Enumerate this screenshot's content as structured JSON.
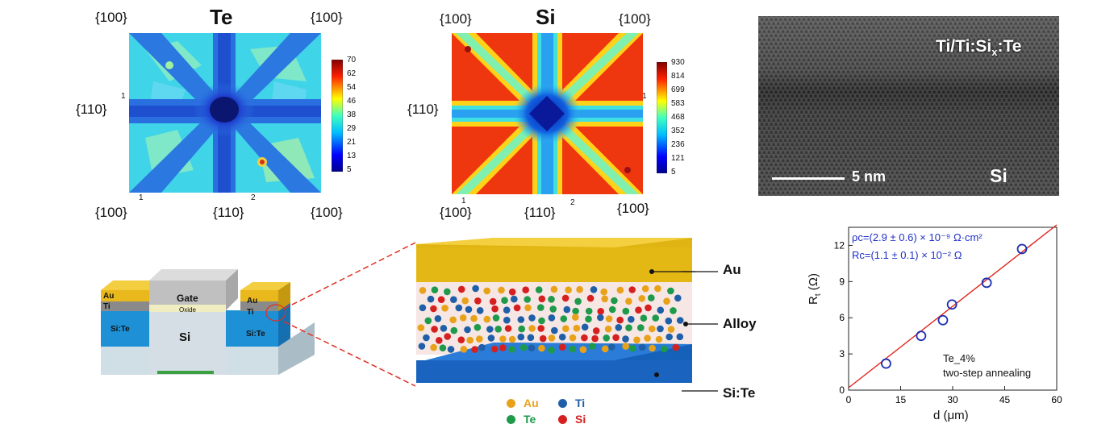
{
  "te_map": {
    "title": "Te",
    "top_left": "{100}",
    "top_right": "{100}",
    "left_mid": "{110}",
    "bottom_left": "{100}",
    "bottom_mid": "{110}",
    "bottom_right": "{100}",
    "marker_1": "1",
    "marker_1b": "1",
    "marker_2": "2",
    "colorbar": [
      "70",
      "62",
      "54",
      "46",
      "38",
      "29",
      "21",
      "13",
      "5"
    ]
  },
  "si_map": {
    "title": "Si",
    "top_left": "{100}",
    "top_right": "{100}",
    "left_mid": "{110}",
    "bottom_left": "{100}",
    "bottom_mid": "{110}",
    "bottom_right": "{100}",
    "marker_1": "1",
    "marker_1b": "1",
    "marker_2": "2",
    "colorbar": [
      "930",
      "814",
      "699",
      "583",
      "468",
      "352",
      "236",
      "121",
      "5"
    ]
  },
  "tem": {
    "top_label": "Ti/Ti:Si",
    "top_label_sub": "x",
    "top_label_end": ":Te",
    "scale": "5 nm",
    "bottom_label": "Si"
  },
  "device": {
    "au": "Au",
    "ti": "Ti",
    "gate": "Gate",
    "oxide": "Oxide",
    "si": "Si",
    "sinte_left": "Si:Te",
    "sinte_right": "Si:Te"
  },
  "stack": {
    "layer_au": "Au",
    "layer_alloy": "Alloy",
    "layer_site": "Si:Te",
    "legend": [
      {
        "name": "Au",
        "color": "#E8A21A"
      },
      {
        "name": "Ti",
        "color": "#1F5FA8"
      },
      {
        "name": "Te",
        "color": "#1E9A4A"
      },
      {
        "name": "Si",
        "color": "#D62020"
      }
    ]
  },
  "chart_data": {
    "type": "scatter",
    "xlabel": "d (μm)",
    "ylabel": "R",
    "ylabel_sub": "t",
    "ylabel_unit": " (Ω)",
    "xlim": [
      0,
      60
    ],
    "ylim": [
      0,
      13.5
    ],
    "x_ticks": [
      "0",
      "15",
      "30",
      "45",
      "60"
    ],
    "y_ticks": [
      "0",
      "3",
      "6",
      "9",
      "12"
    ],
    "points": [
      {
        "x": 10.8,
        "y": 2.2
      },
      {
        "x": 20.9,
        "y": 4.5
      },
      {
        "x": 27.2,
        "y": 5.8
      },
      {
        "x": 29.8,
        "y": 7.1
      },
      {
        "x": 39.8,
        "y": 8.9
      },
      {
        "x": 50.0,
        "y": 11.7
      }
    ],
    "fit_line": {
      "x": [
        0,
        60
      ],
      "y": [
        0.2,
        13.7
      ]
    },
    "annotations": {
      "rho_line": "ρc=(2.9 ± 0.6) × 10⁻⁹ Ω·cm²",
      "rc_line": "Rc=(1.1 ± 0.1) × 10⁻² Ω",
      "sample": "Te_4%",
      "process": "two-step annealing"
    },
    "colors": {
      "points": "#1E2FB0",
      "fit": "#E0241B",
      "annotation": "#1E2FC8"
    }
  }
}
